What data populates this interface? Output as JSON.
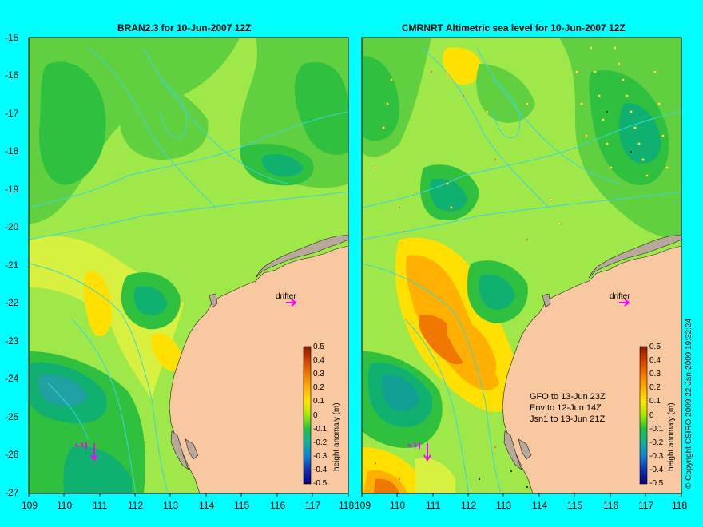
{
  "colors": {
    "land": "#f8c8a0",
    "coast_island": "#b8a89a",
    "contour": "#37d7d7",
    "arrow": "#ff00ff",
    "background": "#00ffff"
  },
  "left_panel": {
    "title": "BRAN2.3 for 10-Jun-2007 12Z",
    "x_ticks": [
      "109",
      "110",
      "111",
      "112",
      "113",
      "114",
      "115",
      "116",
      "117",
      "118"
    ],
    "y_ticks": [
      "-15",
      "-16",
      "-17",
      "-18",
      "-19",
      "-20",
      "-21",
      "-22",
      "-23",
      "-24",
      "-25",
      "-26",
      "-27"
    ],
    "drifter_label": "drifter",
    "colorbar": {
      "ticks": [
        "0.5",
        "0.4",
        "0.3",
        "0.2",
        "0.1",
        "0",
        "-0.1",
        "-0.2",
        "-0.3",
        "-0.4",
        "-0.5"
      ],
      "label": "height anomaly (m)"
    }
  },
  "right_panel": {
    "title": "CMRNRT Altimetric sea level  for 10-Jun-2007 12Z",
    "x_ticks": [
      "109",
      "110",
      "111",
      "112",
      "113",
      "114",
      "115",
      "116",
      "117",
      "118"
    ],
    "drifter_label": "drifter",
    "info_lines": [
      "GFO to 13-Jun 23Z",
      "Env to 12-Jun 14Z",
      "Jsn1 to 13-Jun 21Z"
    ],
    "colorbar": {
      "ticks": [
        "0.5",
        "0.4",
        "0.3",
        "0.2",
        "0.1",
        "0",
        "-0.1",
        "-0.2",
        "-0.3",
        "-0.4",
        "-0.5"
      ],
      "label": "height anomaly (m)"
    }
  },
  "copyright": "© Copyright CSIRO 2009   22-Jan-2009 19:32:24"
}
